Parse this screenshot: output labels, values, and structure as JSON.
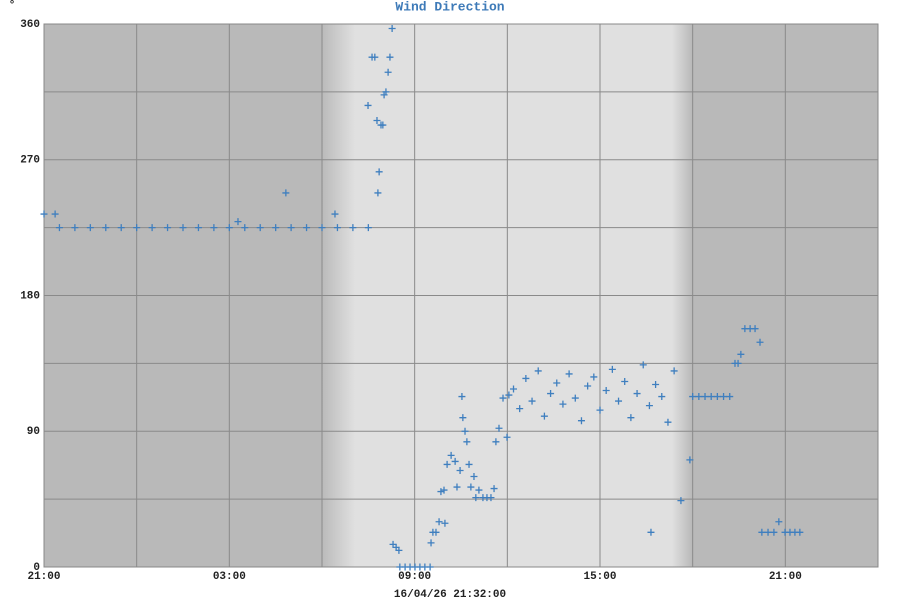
{
  "chart_data": {
    "type": "scatter",
    "title": "Wind Direction",
    "y_label": "°",
    "x_label": "16/04/26 21:32:00",
    "color": "#3f7fbf",
    "grid": true,
    "xlim": [
      0,
      27
    ],
    "xticks": [
      {
        "value": 0,
        "label": "21:00"
      },
      {
        "value": 6,
        "label": "03:00"
      },
      {
        "value": 12,
        "label": "09:00"
      },
      {
        "value": 18,
        "label": "15:00"
      },
      {
        "value": 24,
        "label": "21:00"
      }
    ],
    "ylim": [
      0,
      360
    ],
    "yticks": [
      0,
      90,
      180,
      270,
      360
    ],
    "x": [
      0,
      0.36,
      0.5,
      1,
      1.5,
      2,
      2.5,
      3,
      3.5,
      4,
      4.5,
      5,
      5.5,
      6,
      6.28,
      6.5,
      7,
      7.5,
      7.83,
      8,
      8.5,
      9,
      9.42,
      9.5,
      10,
      10.5,
      10.49,
      10.62,
      10.71,
      10.78,
      10.81,
      10.85,
      10.91,
      10.97,
      11.01,
      11.07,
      11.14,
      11.2,
      11.27,
      11.3,
      11.4,
      11.49,
      11.52,
      11.69,
      11.85,
      12.01,
      12.17,
      12.33,
      12.5,
      12.53,
      12.59,
      12.69,
      12.79,
      12.85,
      12.95,
      12.98,
      13.05,
      13.18,
      13.31,
      13.37,
      13.47,
      13.53,
      13.56,
      13.63,
      13.69,
      13.76,
      13.82,
      13.92,
      13.98,
      14.08,
      14.21,
      14.34,
      14.47,
      14.57,
      14.63,
      14.73,
      14.86,
      14.99,
      15.05,
      15.2,
      15.4,
      15.6,
      15.8,
      16,
      16.2,
      16.4,
      16.6,
      16.8,
      17,
      17.2,
      17.4,
      17.6,
      17.8,
      18,
      18.2,
      18.4,
      18.6,
      18.8,
      19,
      19.2,
      19.4,
      19.6,
      19.8,
      20,
      20.2,
      20.4,
      19.65,
      20.62,
      20.91,
      21,
      21.2,
      21.4,
      21.6,
      21.8,
      22,
      22.2,
      22.37,
      22.47,
      22.56,
      22.69,
      22.86,
      23.02,
      23.18,
      23.24,
      23.44,
      23.63,
      23.79,
      23.99,
      24.15,
      24.31,
      24.47
    ],
    "values": [
      234,
      234,
      225,
      225,
      225,
      225,
      225,
      225,
      225,
      225,
      225,
      225,
      225,
      225,
      229,
      225,
      225,
      225,
      248,
      225,
      225,
      225,
      234,
      225,
      225,
      225,
      306,
      338,
      338,
      296,
      248,
      262,
      293,
      293,
      313,
      315,
      328,
      338,
      357,
      15,
      13,
      11,
      0,
      0,
      0,
      0,
      0,
      0,
      0,
      16,
      23,
      23,
      30,
      50,
      51,
      29,
      68,
      74,
      70,
      53,
      64,
      113,
      99,
      90,
      83,
      68,
      53,
      60,
      46,
      51,
      46,
      46,
      46,
      52,
      83,
      92,
      112,
      86,
      114,
      118,
      105,
      125,
      110,
      130,
      100,
      115,
      122,
      108,
      128,
      112,
      97,
      120,
      126,
      104,
      117,
      131,
      110,
      123,
      99,
      115,
      134,
      107,
      121,
      113,
      96,
      130,
      23,
      44,
      71,
      113,
      113,
      113,
      113,
      113,
      113,
      113,
      135,
      135,
      141,
      158,
      158,
      158,
      149,
      23,
      23,
      23,
      30,
      23,
      23,
      23,
      23
    ]
  }
}
